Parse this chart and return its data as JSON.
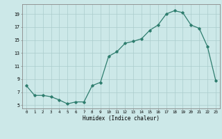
{
  "x": [
    0,
    1,
    2,
    3,
    4,
    5,
    6,
    7,
    8,
    9,
    10,
    11,
    12,
    13,
    14,
    15,
    16,
    17,
    18,
    19,
    20,
    21,
    22,
    23
  ],
  "y": [
    8.0,
    6.5,
    6.5,
    6.3,
    5.8,
    5.2,
    5.5,
    5.5,
    8.0,
    8.5,
    12.5,
    13.2,
    14.5,
    14.8,
    15.2,
    16.5,
    17.3,
    19.0,
    19.5,
    19.2,
    17.3,
    16.8,
    14.0,
    8.8
  ],
  "line_color": "#2e7d6e",
  "bg_color": "#cce8e8",
  "grid_color": "#aacccc",
  "xlabel": "Humidex (Indice chaleur)",
  "yticks": [
    5,
    7,
    9,
    11,
    13,
    15,
    17,
    19
  ],
  "xticks": [
    0,
    1,
    2,
    3,
    4,
    5,
    6,
    7,
    8,
    9,
    10,
    11,
    12,
    13,
    14,
    15,
    16,
    17,
    18,
    19,
    20,
    21,
    22,
    23
  ],
  "ylim": [
    4.5,
    20.5
  ],
  "xlim": [
    -0.5,
    23.5
  ]
}
